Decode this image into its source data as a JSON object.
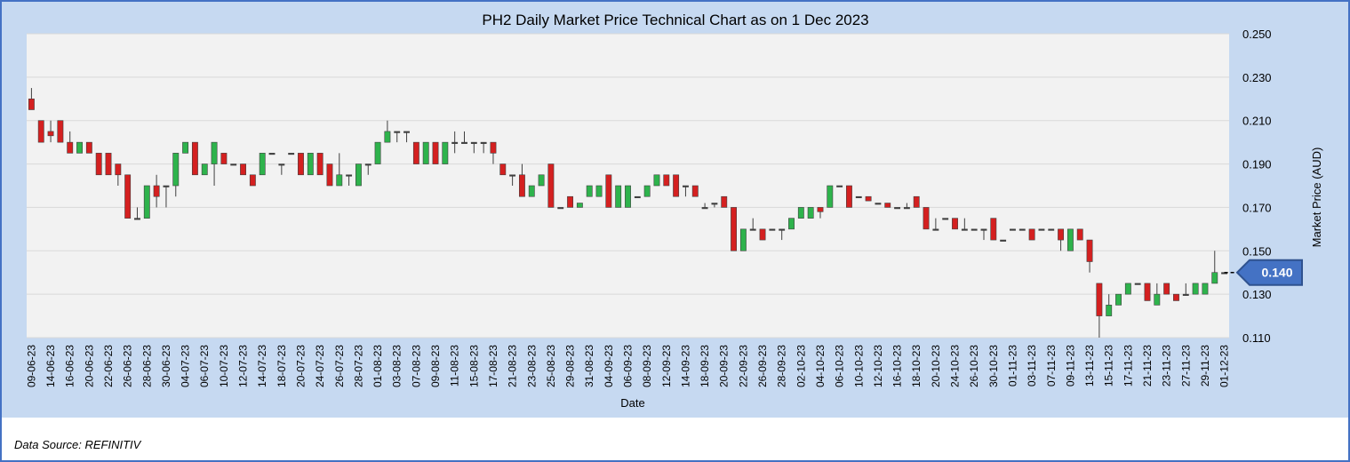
{
  "chart_data": {
    "type": "candlestick",
    "title": "PH2 Daily Market Price Technical Chart as on 1 Dec 2023",
    "x_label": "Date",
    "y_label": "Market Price (AUD)",
    "categories": [
      "09-06-23",
      null,
      "14-06-23",
      null,
      "16-06-23",
      null,
      "20-06-23",
      null,
      "22-06-23",
      null,
      "26-06-23",
      null,
      "28-06-23",
      null,
      "30-06-23",
      null,
      "04-07-23",
      null,
      "06-07-23",
      null,
      "10-07-23",
      null,
      "12-07-23",
      null,
      "14-07-23",
      null,
      "18-07-23",
      null,
      "20-07-23",
      null,
      "24-07-23",
      null,
      "26-07-23",
      null,
      "28-07-23",
      null,
      "01-08-23",
      null,
      "03-08-23",
      null,
      "07-08-23",
      null,
      "09-08-23",
      null,
      "11-08-23",
      null,
      "15-08-23",
      null,
      "17-08-23",
      null,
      "21-08-23",
      null,
      "23-08-23",
      null,
      "25-08-23",
      null,
      "29-08-23",
      null,
      "31-08-23",
      null,
      "04-09-23",
      null,
      "06-09-23",
      null,
      "08-09-23",
      null,
      "12-09-23",
      null,
      "14-09-23",
      null,
      "18-09-23",
      null,
      "20-09-23",
      null,
      "22-09-23",
      null,
      "26-09-23",
      null,
      "28-09-23",
      null,
      "02-10-23",
      null,
      "04-10-23",
      null,
      "06-10-23",
      null,
      "10-10-23",
      null,
      "12-10-23",
      null,
      "16-10-23",
      null,
      "18-10-23",
      null,
      "20-10-23",
      null,
      "24-10-23",
      null,
      "26-10-23",
      null,
      "30-10-23",
      null,
      "01-11-23",
      null,
      "03-11-23",
      null,
      "07-11-23",
      null,
      "09-11-23",
      null,
      "13-11-23",
      null,
      "15-11-23",
      null,
      "17-11-23",
      null,
      "21-11-23",
      null,
      "23-11-23",
      null,
      "27-11-23",
      null,
      "29-11-23",
      null,
      "01-12-23"
    ],
    "open": [
      0.22,
      0.21,
      0.205,
      0.21,
      0.2,
      0.195,
      0.2,
      0.195,
      0.195,
      0.19,
      0.185,
      0.165,
      0.165,
      0.18,
      0.18,
      0.18,
      0.195,
      0.2,
      0.185,
      0.19,
      0.195,
      0.19,
      0.19,
      0.185,
      0.185,
      0.195,
      0.19,
      0.195,
      0.195,
      0.185,
      0.195,
      0.19,
      0.18,
      0.185,
      0.18,
      0.19,
      0.19,
      0.2,
      0.205,
      0.205,
      0.2,
      0.19,
      0.2,
      0.19,
      0.2,
      0.2,
      0.2,
      0.2,
      0.2,
      0.19,
      0.185,
      0.185,
      0.175,
      0.18,
      0.19,
      0.17,
      0.175,
      0.17,
      0.175,
      0.175,
      0.185,
      0.17,
      0.17,
      0.175,
      0.175,
      0.18,
      0.185,
      0.185,
      0.18,
      0.18,
      0.17,
      0.172,
      0.175,
      0.17,
      0.15,
      0.16,
      0.16,
      0.16,
      0.16,
      0.16,
      0.165,
      0.165,
      0.17,
      0.17,
      0.18,
      0.18,
      0.175,
      0.175,
      0.172,
      0.172,
      0.17,
      0.17,
      0.175,
      0.17,
      0.16,
      0.165,
      0.165,
      0.16,
      0.16,
      0.16,
      0.165,
      0.155,
      0.16,
      0.16,
      0.16,
      0.16,
      0.16,
      0.16,
      0.15,
      0.16,
      0.155,
      0.135,
      0.12,
      0.125,
      0.13,
      0.135,
      0.135,
      0.125,
      0.135,
      0.13,
      0.13,
      0.13,
      0.13,
      0.135,
      0.14
    ],
    "high": [
      0.225,
      0.21,
      0.21,
      0.21,
      0.205,
      0.2,
      0.2,
      0.195,
      0.195,
      0.19,
      0.185,
      0.17,
      0.18,
      0.185,
      0.18,
      0.195,
      0.2,
      0.2,
      0.19,
      0.2,
      0.195,
      0.19,
      0.19,
      0.185,
      0.195,
      0.195,
      0.19,
      0.195,
      0.195,
      0.195,
      0.195,
      0.19,
      0.195,
      0.185,
      0.19,
      0.19,
      0.2,
      0.21,
      0.205,
      0.205,
      0.2,
      0.2,
      0.2,
      0.2,
      0.205,
      0.205,
      0.2,
      0.2,
      0.2,
      0.19,
      0.185,
      0.19,
      0.18,
      0.185,
      0.19,
      0.17,
      0.175,
      0.172,
      0.18,
      0.18,
      0.185,
      0.18,
      0.18,
      0.175,
      0.18,
      0.185,
      0.185,
      0.185,
      0.18,
      0.18,
      0.172,
      0.172,
      0.175,
      0.17,
      0.16,
      0.165,
      0.16,
      0.16,
      0.16,
      0.165,
      0.17,
      0.17,
      0.17,
      0.18,
      0.18,
      0.18,
      0.175,
      0.175,
      0.172,
      0.172,
      0.17,
      0.172,
      0.175,
      0.17,
      0.165,
      0.165,
      0.165,
      0.165,
      0.16,
      0.16,
      0.165,
      0.155,
      0.16,
      0.16,
      0.16,
      0.16,
      0.16,
      0.16,
      0.16,
      0.16,
      0.155,
      0.135,
      0.13,
      0.13,
      0.135,
      0.135,
      0.135,
      0.135,
      0.135,
      0.13,
      0.135,
      0.135,
      0.135,
      0.15,
      0.14
    ],
    "low": [
      0.215,
      0.2,
      0.2,
      0.2,
      0.195,
      0.195,
      0.195,
      0.185,
      0.185,
      0.18,
      0.165,
      0.165,
      0.165,
      0.17,
      0.17,
      0.175,
      0.195,
      0.185,
      0.185,
      0.18,
      0.19,
      0.19,
      0.185,
      0.18,
      0.185,
      0.195,
      0.185,
      0.195,
      0.185,
      0.185,
      0.185,
      0.18,
      0.18,
      0.18,
      0.18,
      0.185,
      0.19,
      0.2,
      0.2,
      0.2,
      0.19,
      0.19,
      0.19,
      0.19,
      0.195,
      0.2,
      0.195,
      0.195,
      0.19,
      0.185,
      0.18,
      0.175,
      0.175,
      0.18,
      0.17,
      0.17,
      0.17,
      0.17,
      0.175,
      0.175,
      0.17,
      0.17,
      0.17,
      0.175,
      0.175,
      0.18,
      0.18,
      0.175,
      0.175,
      0.175,
      0.17,
      0.17,
      0.17,
      0.15,
      0.15,
      0.16,
      0.155,
      0.16,
      0.155,
      0.16,
      0.165,
      0.165,
      0.165,
      0.17,
      0.18,
      0.17,
      0.175,
      0.173,
      0.172,
      0.17,
      0.17,
      0.17,
      0.17,
      0.16,
      0.16,
      0.165,
      0.16,
      0.16,
      0.16,
      0.155,
      0.155,
      0.155,
      0.16,
      0.16,
      0.155,
      0.16,
      0.16,
      0.15,
      0.15,
      0.155,
      0.14,
      0.11,
      0.12,
      0.125,
      0.13,
      0.135,
      0.127,
      0.125,
      0.13,
      0.127,
      0.13,
      0.13,
      0.13,
      0.135,
      0.14
    ],
    "close": [
      0.215,
      0.2,
      0.203,
      0.2,
      0.195,
      0.2,
      0.195,
      0.185,
      0.185,
      0.185,
      0.165,
      0.165,
      0.18,
      0.175,
      0.18,
      0.195,
      0.2,
      0.185,
      0.19,
      0.2,
      0.19,
      0.19,
      0.185,
      0.18,
      0.195,
      0.195,
      0.19,
      0.195,
      0.185,
      0.195,
      0.185,
      0.18,
      0.185,
      0.185,
      0.19,
      0.19,
      0.2,
      0.205,
      0.205,
      0.205,
      0.19,
      0.2,
      0.19,
      0.2,
      0.2,
      0.2,
      0.2,
      0.2,
      0.195,
      0.185,
      0.185,
      0.175,
      0.18,
      0.185,
      0.17,
      0.17,
      0.17,
      0.172,
      0.18,
      0.18,
      0.17,
      0.18,
      0.18,
      0.175,
      0.18,
      0.185,
      0.18,
      0.175,
      0.18,
      0.175,
      0.17,
      0.172,
      0.17,
      0.15,
      0.16,
      0.16,
      0.155,
      0.16,
      0.16,
      0.165,
      0.17,
      0.17,
      0.168,
      0.18,
      0.18,
      0.17,
      0.175,
      0.173,
      0.172,
      0.17,
      0.17,
      0.17,
      0.17,
      0.16,
      0.16,
      0.165,
      0.16,
      0.16,
      0.16,
      0.16,
      0.155,
      0.155,
      0.16,
      0.16,
      0.155,
      0.16,
      0.16,
      0.155,
      0.16,
      0.155,
      0.145,
      0.12,
      0.125,
      0.13,
      0.135,
      0.135,
      0.127,
      0.13,
      0.13,
      0.127,
      0.13,
      0.135,
      0.135,
      0.14,
      0.14
    ],
    "up_color": "#2eb34c",
    "down_color": "#d42020",
    "outline_color": "#404040",
    "ylim": [
      0.11,
      0.25
    ],
    "yticks": [
      {
        "value": 0.11,
        "label": "0.110"
      },
      {
        "value": 0.13,
        "label": "0.130"
      },
      {
        "value": 0.15,
        "label": "0.150"
      },
      {
        "value": 0.17,
        "label": "0.170"
      },
      {
        "value": 0.19,
        "label": "0.190"
      },
      {
        "value": 0.21,
        "label": "0.210"
      },
      {
        "value": 0.23,
        "label": "0.230"
      },
      {
        "value": 0.25,
        "label": "0.250"
      }
    ],
    "grid": true,
    "last_price": {
      "value": 0.14,
      "label": "0.140"
    }
  },
  "source": "Data Source: REFINITIV"
}
